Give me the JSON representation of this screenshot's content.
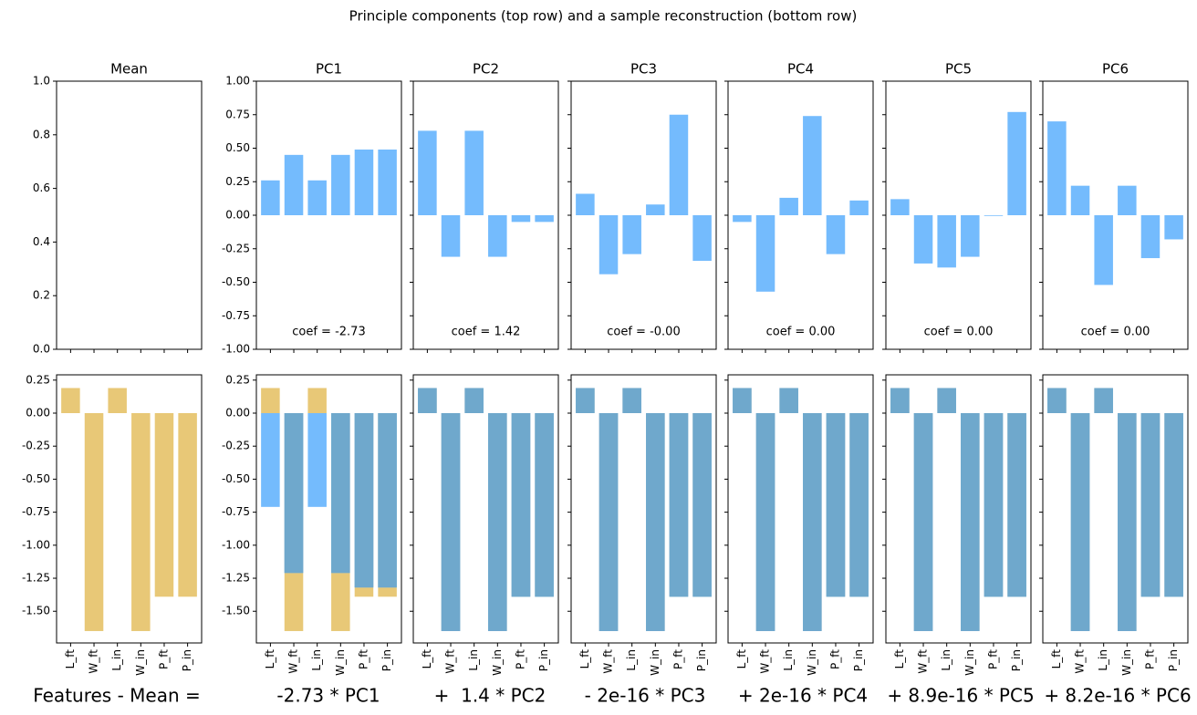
{
  "chart_data": {
    "type": "bar",
    "title": "Principle components (top row) and a sample reconstruction (bottom row)",
    "categories": [
      "L_ft",
      "W_ft",
      "L_in",
      "W_in",
      "P_ft",
      "P_in"
    ],
    "top_row": {
      "mean": {
        "title": "Mean",
        "values": [
          0,
          0,
          0,
          0,
          0,
          0
        ],
        "ylim": [
          0,
          1
        ],
        "yticks": [
          {
            "value": 0,
            "label": "0.0"
          },
          0.2,
          0.4,
          0.6,
          0.8,
          {
            "value": 1,
            "label": "1.0"
          }
        ]
      },
      "color": "#74bbfd",
      "ylim": [
        -1,
        1
      ],
      "yticks": [
        {
          "value": -1,
          "label": "-1.00"
        },
        -0.75,
        {
          "value": -0.5,
          "label": "-0.50"
        },
        -0.25,
        {
          "value": 0,
          "label": "0.00"
        },
        0.25,
        {
          "value": 0.5,
          "label": "0.50"
        },
        0.75,
        {
          "value": 1,
          "label": "1.00"
        }
      ],
      "panels": [
        {
          "title": "PC1",
          "values": [
            0.26,
            0.45,
            0.26,
            0.45,
            0.49,
            0.49
          ],
          "annotation": "coef = -2.73"
        },
        {
          "title": "PC2",
          "values": [
            0.63,
            -0.31,
            0.63,
            -0.31,
            -0.05,
            -0.05
          ],
          "annotation": "coef = 1.42"
        },
        {
          "title": "PC3",
          "values": [
            0.16,
            -0.44,
            -0.29,
            0.08,
            0.75,
            -0.34
          ],
          "annotation": "coef = -0.00"
        },
        {
          "title": "PC4",
          "values": [
            -0.05,
            -0.57,
            0.13,
            0.74,
            -0.29,
            0.11
          ],
          "annotation": "coef = 0.00"
        },
        {
          "title": "PC5",
          "values": [
            0.12,
            -0.36,
            -0.39,
            -0.31,
            -0.005,
            0.77
          ],
          "annotation": "coef = 0.00"
        },
        {
          "title": "PC6",
          "values": [
            0.7,
            0.22,
            -0.52,
            0.22,
            -0.32,
            -0.18
          ],
          "annotation": "coef = 0.00"
        }
      ]
    },
    "bottom_row": {
      "ylim": [
        -1.74,
        0.29
      ],
      "yticks": [
        0.25,
        {
          "value": 0,
          "label": "0.00"
        },
        -0.25,
        {
          "value": -0.5,
          "label": "-0.50"
        },
        -0.75,
        {
          "value": -1,
          "label": "-1.00"
        },
        -1.25,
        {
          "value": -1.5,
          "label": "-1.50"
        }
      ],
      "target": {
        "values": [
          0.19,
          -1.65,
          0.19,
          -1.65,
          -1.39,
          -1.39
        ],
        "color": "#e8c877"
      },
      "reconstruction_color": "#74bbfd",
      "overlap_color": "#6fa8cc",
      "panels": [
        {
          "values": [
            -0.71,
            -1.21,
            -0.71,
            -1.21,
            -1.32,
            -1.32
          ]
        },
        {
          "values": [
            0.19,
            -1.65,
            0.19,
            -1.65,
            -1.39,
            -1.39
          ]
        },
        {
          "values": [
            0.19,
            -1.65,
            0.19,
            -1.65,
            -1.39,
            -1.39
          ]
        },
        {
          "values": [
            0.19,
            -1.65,
            0.19,
            -1.65,
            -1.39,
            -1.39
          ]
        },
        {
          "values": [
            0.19,
            -1.65,
            0.19,
            -1.65,
            -1.39,
            -1.39
          ]
        },
        {
          "values": [
            0.19,
            -1.65,
            0.19,
            -1.65,
            -1.39,
            -1.39
          ]
        }
      ],
      "labels": [
        "Features - Mean =",
        "-2.73 * PC1",
        "+  1.4 * PC2",
        "- 2e-16 * PC3",
        "+ 2e-16 * PC4",
        "+ 8.9e-16 * PC5",
        "+ 8.2e-16 * PC6"
      ]
    }
  }
}
